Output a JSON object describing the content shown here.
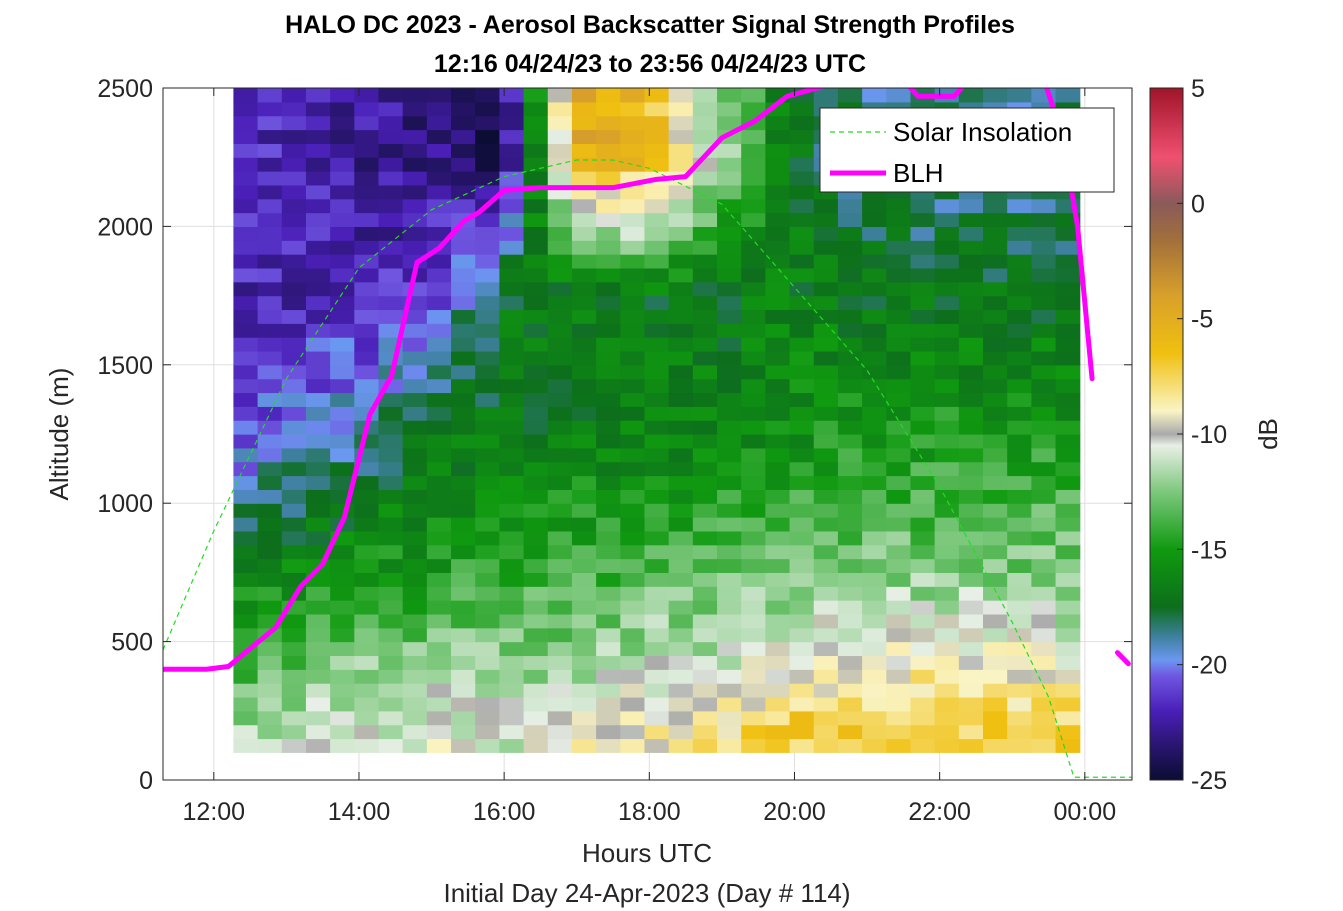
{
  "chart_data": {
    "type": "heatmap",
    "title": "HALO DC 2023 - Aerosol Backscatter Signal Strength Profiles",
    "subtitle": "12:16 04/24/23 to 23:56 04/24/23  UTC",
    "xlabel": "Hours UTC",
    "xlabel2": "Initial Day 24-Apr-2023 (Day # 114)",
    "ylabel": "Altitude (m)",
    "x_unit": "hours UTC (decimal, 24 = 00:00 next day)",
    "xlim": [
      11.3,
      24.65
    ],
    "ylim": [
      0,
      2500
    ],
    "x_ticks": [
      {
        "value": 12,
        "label": "12:00"
      },
      {
        "value": 14,
        "label": "14:00"
      },
      {
        "value": 16,
        "label": "16:00"
      },
      {
        "value": 18,
        "label": "18:00"
      },
      {
        "value": 20,
        "label": "20:00"
      },
      {
        "value": 22,
        "label": "22:00"
      },
      {
        "value": 24,
        "label": "00:00"
      }
    ],
    "y_ticks": [
      0,
      500,
      1000,
      1500,
      2000,
      2500
    ],
    "grid": true,
    "legend_position": "top-right",
    "colorbar": {
      "label": "dB",
      "range": [
        -25,
        5
      ],
      "ticks": [
        5,
        0,
        -5,
        -10,
        -15,
        -20,
        -25
      ],
      "colors": [
        {
          "value": -25,
          "color": "#0b0d33"
        },
        {
          "value": -23.5,
          "color": "#2a1570"
        },
        {
          "value": -22,
          "color": "#4a1fb8"
        },
        {
          "value": -20.5,
          "color": "#6f56e0"
        },
        {
          "value": -19.8,
          "color": "#6b97f0"
        },
        {
          "value": -18.8,
          "color": "#3f80a0"
        },
        {
          "value": -17.5,
          "color": "#0d6e1c"
        },
        {
          "value": -15,
          "color": "#109a10"
        },
        {
          "value": -12.5,
          "color": "#7dc87d"
        },
        {
          "value": -10.5,
          "color": "#e8efe6"
        },
        {
          "value": -10,
          "color": "#aaaaaa"
        },
        {
          "value": -9,
          "color": "#faf4c4"
        },
        {
          "value": -6.5,
          "color": "#f0c010"
        },
        {
          "value": -4,
          "color": "#d8a02a"
        },
        {
          "value": -1.5,
          "color": "#a06e3c"
        },
        {
          "value": 0,
          "color": "#8a5a5a"
        },
        {
          "value": 2,
          "color": "#f05070"
        },
        {
          "value": 5,
          "color": "#a01428"
        }
      ]
    },
    "heatmap": {
      "x_start": 12.27,
      "x_end": 23.93,
      "altitude_bin_m": 50,
      "altitude_bottom_m": 100,
      "altitude_top_m": 2500,
      "n_time_bins": 35,
      "sparse_note_for_reader": "",
      "profiles_db_by_altitude": [
        {
          "alt_range": [
            100,
            300
          ],
          "db_by_hour": [
            [
              12.3,
              -12
            ],
            [
              13,
              -11
            ],
            [
              14,
              -11
            ],
            [
              15,
              -10
            ],
            [
              16,
              -11
            ],
            [
              17,
              -9
            ],
            [
              18,
              -9
            ],
            [
              19,
              -8
            ],
            [
              20,
              -7
            ],
            [
              21,
              -7
            ],
            [
              22,
              -7
            ],
            [
              23,
              -7
            ],
            [
              23.9,
              -7
            ]
          ]
        },
        {
          "alt_range": [
            300,
            500
          ],
          "db_by_hour": [
            [
              12.3,
              -14
            ],
            [
              13,
              -13
            ],
            [
              14,
              -12
            ],
            [
              15,
              -12
            ],
            [
              16,
              -12
            ],
            [
              17,
              -12
            ],
            [
              18,
              -11
            ],
            [
              19,
              -11
            ],
            [
              20,
              -9
            ],
            [
              21,
              -9
            ],
            [
              22,
              -9
            ],
            [
              23,
              -9
            ],
            [
              23.9,
              -10
            ]
          ]
        },
        {
          "alt_range": [
            500,
            1000
          ],
          "db_by_hour": [
            [
              12.3,
              -16
            ],
            [
              13,
              -16
            ],
            [
              14,
              -15
            ],
            [
              15,
              -15
            ],
            [
              16,
              -14
            ],
            [
              17,
              -14
            ],
            [
              18,
              -13.5
            ],
            [
              19,
              -13
            ],
            [
              20,
              -13
            ],
            [
              21,
              -12.5
            ],
            [
              22,
              -12.5
            ],
            [
              23,
              -12.5
            ],
            [
              23.9,
              -12.5
            ]
          ]
        },
        {
          "alt_range": [
            1000,
            1500
          ],
          "db_by_hour": [
            [
              12.3,
              -21
            ],
            [
              13,
              -20
            ],
            [
              14,
              -19
            ],
            [
              15,
              -17
            ],
            [
              16,
              -17
            ],
            [
              17,
              -16.5
            ],
            [
              18,
              -16.5
            ],
            [
              19,
              -16
            ],
            [
              20,
              -15.5
            ],
            [
              21,
              -15
            ],
            [
              22,
              -15
            ],
            [
              23,
              -15
            ],
            [
              23.9,
              -15
            ]
          ]
        },
        {
          "alt_range": [
            1500,
            2000
          ],
          "db_by_hour": [
            [
              12.3,
              -22
            ],
            [
              13,
              -22
            ],
            [
              14,
              -22
            ],
            [
              15,
              -21
            ],
            [
              16,
              -17
            ],
            [
              17,
              -17
            ],
            [
              18,
              -17
            ],
            [
              19,
              -17
            ],
            [
              20,
              -16.5
            ],
            [
              21,
              -17
            ],
            [
              22,
              -17
            ],
            [
              23,
              -17
            ],
            [
              23.9,
              -17.5
            ]
          ]
        },
        {
          "alt_range": [
            2000,
            2500
          ],
          "db_by_hour": [
            [
              12.3,
              -21.5
            ],
            [
              13,
              -22
            ],
            [
              14,
              -22.5
            ],
            [
              15,
              -23
            ],
            [
              16,
              -24
            ],
            [
              17,
              -5
            ],
            [
              18,
              -6
            ],
            [
              19,
              -12
            ],
            [
              20,
              -17
            ],
            [
              21,
              -18.5
            ],
            [
              22,
              -19
            ],
            [
              23,
              -19
            ],
            [
              23.9,
              -18
            ]
          ]
        }
      ]
    },
    "series": [
      {
        "name": "Solar Insolation",
        "style": "dashed",
        "color": "#22dd22",
        "points": [
          [
            11.3,
            470
          ],
          [
            12,
            900
          ],
          [
            13,
            1450
          ],
          [
            14,
            1850
          ],
          [
            15,
            2060
          ],
          [
            16,
            2180
          ],
          [
            17,
            2240
          ],
          [
            17.5,
            2240
          ],
          [
            18,
            2210
          ],
          [
            19,
            2080
          ],
          [
            20,
            1780
          ],
          [
            21,
            1480
          ],
          [
            22,
            1060
          ],
          [
            23,
            570
          ],
          [
            23.5,
            300
          ],
          [
            23.85,
            10
          ],
          [
            24.65,
            10
          ]
        ]
      },
      {
        "name": "BLH",
        "style": "solid",
        "color": "#ff00ff",
        "segments": [
          [
            [
              11.3,
              400
            ],
            [
              11.9,
              400
            ],
            [
              12.2,
              410
            ],
            [
              12.85,
              550
            ],
            [
              13.2,
              700
            ],
            [
              13.5,
              780
            ],
            [
              13.8,
              950
            ],
            [
              14.15,
              1320
            ],
            [
              14.45,
              1460
            ],
            [
              14.8,
              1870
            ],
            [
              15.1,
              1920
            ],
            [
              15.45,
              2020
            ],
            [
              15.65,
              2050
            ],
            [
              16,
              2130
            ],
            [
              16.5,
              2140
            ],
            [
              17.5,
              2140
            ],
            [
              18.1,
              2170
            ],
            [
              18.5,
              2180
            ],
            [
              19,
              2320
            ],
            [
              19.45,
              2380
            ],
            [
              19.9,
              2470
            ],
            [
              20.45,
              2510
            ]
          ],
          [
            [
              21.5,
              2530
            ],
            [
              21.7,
              2470
            ],
            [
              22.2,
              2470
            ],
            [
              22.4,
              2530
            ]
          ],
          [
            [
              23.45,
              2520
            ],
            [
              23.7,
              2320
            ],
            [
              23.9,
              2000
            ],
            [
              24.1,
              1450
            ]
          ],
          [
            [
              24.45,
              460
            ],
            [
              24.6,
              420
            ]
          ]
        ]
      }
    ]
  }
}
